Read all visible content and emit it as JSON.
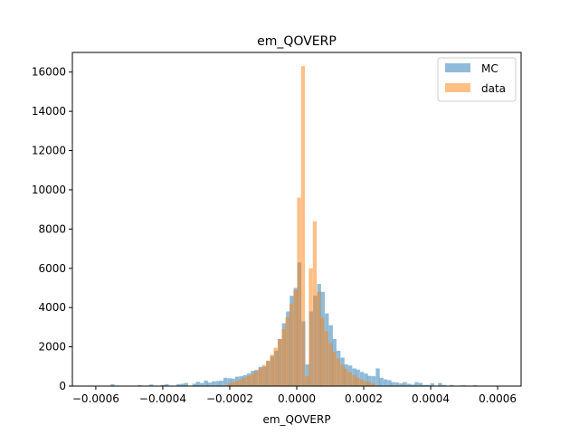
{
  "chart_data": {
    "type": "histogram",
    "title": "em_QOVERP",
    "xlabel": "em_QOVERP",
    "ylabel": "",
    "xlim": [
      -0.00067,
      0.00067
    ],
    "ylim": [
      0,
      17000
    ],
    "x_ticks": [
      -0.0006,
      -0.0004,
      -0.0002,
      0.0,
      0.0002,
      0.0004,
      0.0006
    ],
    "x_tick_labels": [
      "−0.0006",
      "−0.0004",
      "−0.0002",
      "0.0000",
      "0.0002",
      "0.0004",
      "0.0006"
    ],
    "y_ticks": [
      0,
      2000,
      4000,
      6000,
      8000,
      10000,
      12000,
      14000,
      16000
    ],
    "y_tick_labels": [
      "0",
      "2000",
      "4000",
      "6000",
      "8000",
      "10000",
      "12000",
      "14000",
      "16000"
    ],
    "grid": false,
    "legend_position": "upper right",
    "bin_width": 1.17e-05,
    "series": [
      {
        "name": "MC",
        "color": "#1f77b4",
        "opacity": 0.5,
        "bins": [
          [
            -0.000556,
            100
          ],
          [
            -0.000475,
            50
          ],
          [
            -0.00044,
            80
          ],
          [
            -0.000406,
            60
          ],
          [
            -0.000394,
            100
          ],
          [
            -0.000359,
            100
          ],
          [
            -0.000347,
            120
          ],
          [
            -0.000336,
            160
          ],
          [
            -0.000312,
            120
          ],
          [
            -0.000301,
            220
          ],
          [
            -0.000289,
            160
          ],
          [
            -0.000277,
            280
          ],
          [
            -0.000266,
            180
          ],
          [
            -0.000254,
            240
          ],
          [
            -0.000242,
            260
          ],
          [
            -0.000231,
            280
          ],
          [
            -0.000219,
            420
          ],
          [
            -0.000207,
            400
          ],
          [
            -0.000196,
            380
          ],
          [
            -0.000184,
            480
          ],
          [
            -0.000172,
            500
          ],
          [
            -0.000161,
            560
          ],
          [
            -0.000149,
            640
          ],
          [
            -0.000137,
            780
          ],
          [
            -0.000126,
            820
          ],
          [
            -0.000114,
            980
          ],
          [
            -0.000102,
            1000
          ],
          [
            -9.1e-05,
            1280
          ],
          [
            -7.9e-05,
            1520
          ],
          [
            -6.7e-05,
            1800
          ],
          [
            -5.6e-05,
            2400
          ],
          [
            -4.4e-05,
            3200
          ],
          [
            -3.2e-05,
            3800
          ],
          [
            -2.1e-05,
            4600
          ],
          [
            -9e-06,
            5000
          ],
          [
            2e-06,
            6300
          ],
          [
            1.4e-05,
            3300
          ],
          [
            2.6e-05,
            1100
          ],
          [
            3.7e-05,
            3800
          ],
          [
            4.9e-05,
            4600
          ],
          [
            6.1e-05,
            5200
          ],
          [
            7.2e-05,
            4800
          ],
          [
            8.4e-05,
            3700
          ],
          [
            9.6e-05,
            3100
          ],
          [
            0.000107,
            2400
          ],
          [
            0.000119,
            1800
          ],
          [
            0.000131,
            1450
          ],
          [
            0.000142,
            1100
          ],
          [
            0.000154,
            1050
          ],
          [
            0.000166,
            900
          ],
          [
            0.000177,
            840
          ],
          [
            0.000189,
            720
          ],
          [
            0.000201,
            640
          ],
          [
            0.000212,
            520
          ],
          [
            0.000224,
            500
          ],
          [
            0.000236,
            900
          ],
          [
            0.000247,
            420
          ],
          [
            0.000259,
            340
          ],
          [
            0.000271,
            300
          ],
          [
            0.000282,
            200
          ],
          [
            0.000294,
            180
          ],
          [
            0.000306,
            140
          ],
          [
            0.000317,
            200
          ],
          [
            0.000329,
            120
          ],
          [
            0.000341,
            80
          ],
          [
            0.000352,
            200
          ],
          [
            0.000364,
            160
          ],
          [
            0.000376,
            60
          ],
          [
            0.000387,
            60
          ],
          [
            0.000399,
            140
          ],
          [
            0.000422,
            160
          ],
          [
            0.000434,
            60
          ],
          [
            0.000457,
            60
          ],
          [
            0.000492,
            40
          ],
          [
            0.000527,
            40
          ]
        ]
      },
      {
        "name": "data",
        "color": "#ff7f0e",
        "opacity": 0.5,
        "bins": [
          [
            -0.000208,
            140
          ],
          [
            -0.000197,
            200
          ],
          [
            -0.000185,
            260
          ],
          [
            -0.000174,
            340
          ],
          [
            -0.000162,
            420
          ],
          [
            -0.00015,
            520
          ],
          [
            -0.000139,
            620
          ],
          [
            -0.000127,
            760
          ],
          [
            -0.000115,
            900
          ],
          [
            -0.000104,
            1080
          ],
          [
            -9.2e-05,
            1300
          ],
          [
            -8e-05,
            1600
          ],
          [
            -6.9e-05,
            1950
          ],
          [
            -5.7e-05,
            2400
          ],
          [
            -4.5e-05,
            2900
          ],
          [
            -3.4e-05,
            3500
          ],
          [
            -2.2e-05,
            4200
          ],
          [
            -1e-05,
            4900
          ],
          [
            1e-06,
            9600
          ],
          [
            1.3e-05,
            16300
          ],
          [
            2.5e-05,
            500
          ],
          [
            3.6e-05,
            6000
          ],
          [
            4.8e-05,
            8400
          ],
          [
            6e-05,
            4800
          ],
          [
            7.1e-05,
            3500
          ],
          [
            8.3e-05,
            2800
          ],
          [
            9.5e-05,
            2200
          ],
          [
            0.000106,
            1750
          ],
          [
            0.000118,
            1400
          ],
          [
            0.00013,
            1100
          ],
          [
            0.000141,
            880
          ],
          [
            0.000153,
            700
          ],
          [
            0.000165,
            560
          ],
          [
            0.000176,
            440
          ],
          [
            0.000188,
            340
          ],
          [
            0.0002,
            260
          ],
          [
            0.000211,
            200
          ],
          [
            0.000223,
            150
          ]
        ]
      }
    ]
  }
}
